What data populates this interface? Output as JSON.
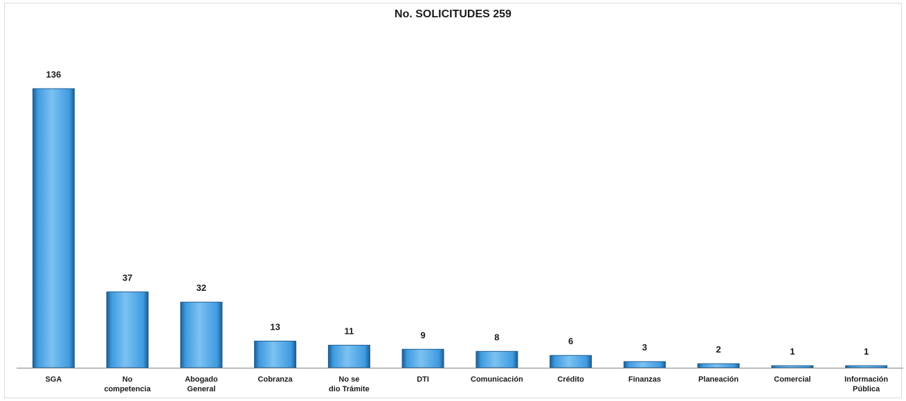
{
  "chart_data": {
    "type": "bar",
    "title": "No. SOLICITUDES 259",
    "xlabel": "",
    "ylabel": "",
    "ylim": [
      0,
      136
    ],
    "grid": false,
    "legend": "none",
    "categories": [
      [
        "SGA"
      ],
      [
        "No",
        "competencia"
      ],
      [
        "Abogado",
        "General"
      ],
      [
        "Cobranza"
      ],
      [
        "No se",
        "dio Trámite"
      ],
      [
        "DTI"
      ],
      [
        "Comunicación"
      ],
      [
        "Crédito"
      ],
      [
        "Finanzas"
      ],
      [
        "Planeación"
      ],
      [
        "Comercial"
      ],
      [
        "Información",
        "Pública"
      ]
    ],
    "values": [
      136,
      37,
      32,
      13,
      11,
      9,
      8,
      6,
      3,
      2,
      1,
      1
    ],
    "colors": {
      "bar_fill": "#3f9be0",
      "bar_edge": "#1d5d91",
      "bar_highlight": "#7cc2f2",
      "axis": "#808080",
      "text": "#1a1a1a"
    }
  }
}
